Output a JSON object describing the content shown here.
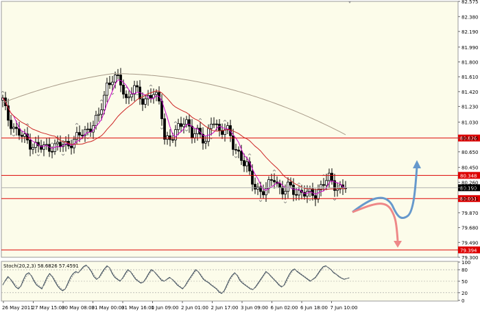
{
  "chart_data": [
    {
      "type": "line",
      "title": "",
      "xlabel": "",
      "ylabel": "",
      "ylim": [
        79.3,
        82.575
      ],
      "y_ticks": [
        "82.575",
        "82.380",
        "82.190",
        "81.990",
        "81.800",
        "81.610",
        "81.420",
        "81.230",
        "81.030",
        "80.826",
        "80.650",
        "80.450",
        "80.260",
        "80.190",
        "80.051",
        "79.870",
        "79.680",
        "79.490",
        "79.300"
      ],
      "x_ticks": [
        "26 May 2011",
        "27 May 15:00",
        "30 May 08:00",
        "31 May 00:00",
        "31 May 16:00",
        "1 Jun 09:00",
        "2 Jun 01:00",
        "2 Jun 17:00",
        "3 Jun 09:00",
        "6 Jun 02:00",
        "6 Jun 18:00",
        "7 Jun 10:00"
      ],
      "horizontal_levels": [
        {
          "label": "80.826",
          "value": 80.826
        },
        {
          "label": "80.348",
          "value": 80.348
        },
        {
          "label": "80.051",
          "value": 80.051
        },
        {
          "label": "79.394",
          "value": 79.394
        }
      ],
      "current_price": {
        "label": "80.190",
        "value": 80.19
      },
      "grid": false,
      "colors": {
        "background": "#fcfcea",
        "candles": "#000000",
        "fast_ma": "#cc00cc",
        "mid_ma": "#cc2222",
        "slow_ma": "#a89a88",
        "levels": "#dd0000",
        "bullish_arrow": "#6699cc",
        "bearish_arrow": "#ee8888"
      }
    },
    {
      "type": "line",
      "title": "Stoch(20,2,3) 58.6826 57.4591",
      "ylim": [
        0,
        100
      ],
      "y_ticks": [
        "100",
        "80",
        "50",
        "20",
        "0"
      ],
      "series": [
        {
          "values": [
            40,
            52,
            62,
            55,
            45,
            35,
            30,
            38,
            55,
            68,
            72,
            64,
            50,
            40,
            35,
            30,
            45,
            60,
            70,
            62,
            50,
            38,
            30,
            25,
            30,
            45,
            60,
            70,
            75,
            72,
            80,
            88,
            92,
            85,
            75,
            62,
            55,
            60,
            72,
            82,
            90,
            85,
            70,
            60,
            55,
            50,
            58,
            70,
            80,
            75,
            65,
            55,
            50,
            45,
            48,
            58,
            70,
            80,
            76,
            68,
            60,
            52,
            50,
            55,
            60,
            55,
            48,
            40,
            35,
            30,
            38,
            50,
            60,
            70,
            80,
            75,
            65,
            55,
            50,
            46,
            40,
            35,
            30,
            22,
            18,
            25,
            40,
            55,
            65,
            72,
            65,
            52,
            45,
            40,
            35,
            30,
            28,
            35,
            45,
            55,
            65,
            75,
            70,
            62,
            55,
            48,
            40,
            35,
            40,
            55,
            68,
            78,
            82,
            75,
            70,
            65,
            60,
            55,
            50,
            55,
            60,
            70,
            80,
            88,
            90,
            85,
            80,
            72,
            68,
            62,
            58,
            55,
            57,
            59
          ]
        },
        {
          "values": [
            42,
            50,
            58,
            56,
            48,
            40,
            34,
            36,
            50,
            62,
            68,
            66,
            54,
            44,
            38,
            33,
            40,
            54,
            65,
            64,
            54,
            42,
            34,
            28,
            29,
            40,
            54,
            65,
            72,
            72,
            78,
            85,
            90,
            87,
            78,
            67,
            58,
            58,
            68,
            78,
            87,
            86,
            74,
            64,
            57,
            52,
            56,
            66,
            76,
            76,
            68,
            58,
            52,
            47,
            47,
            55,
            66,
            76,
            76,
            70,
            62,
            55,
            51,
            54,
            58,
            56,
            50,
            43,
            37,
            32,
            36,
            46,
            56,
            66,
            76,
            76,
            68,
            58,
            52,
            48,
            42,
            37,
            32,
            25,
            20,
            23,
            35,
            50,
            61,
            69,
            67,
            56,
            48,
            42,
            37,
            32,
            29,
            33,
            42,
            52,
            62,
            72,
            71,
            64,
            57,
            50,
            43,
            37,
            38,
            50,
            63,
            74,
            80,
            77,
            72,
            67,
            62,
            57,
            52,
            54,
            58,
            67,
            77,
            85,
            89,
            86,
            81,
            74,
            69,
            64,
            59,
            56,
            57,
            58
          ]
        }
      ]
    }
  ]
}
